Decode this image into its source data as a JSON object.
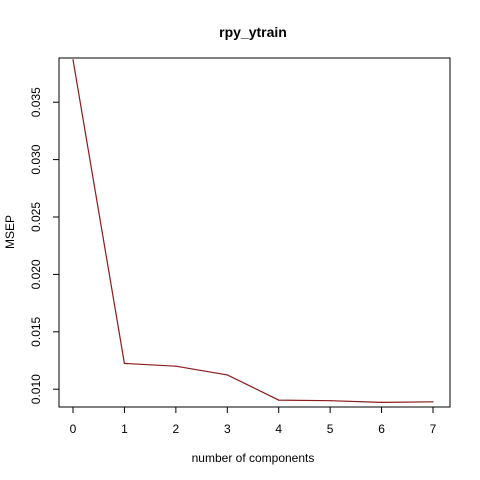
{
  "chart_data": {
    "type": "line",
    "title": "rpy_ytrain",
    "xlabel": "number of components",
    "ylabel": "MSEP",
    "x": [
      0,
      1,
      2,
      3,
      4,
      5,
      6,
      7
    ],
    "xlim": [
      0,
      7
    ],
    "ylim": [
      0.00845,
      0.03885
    ],
    "xticks": [
      "0",
      "1",
      "2",
      "3",
      "4",
      "5",
      "6",
      "7"
    ],
    "yticks": [
      "0.010",
      "0.015",
      "0.020",
      "0.025",
      "0.030",
      "0.035"
    ],
    "grid": false,
    "series": [
      {
        "values": [
          0.0387,
          0.01225,
          0.012,
          0.01125,
          0.00905,
          0.009,
          0.00885,
          0.0089
        ],
        "color": "#8b1a1a"
      }
    ]
  }
}
